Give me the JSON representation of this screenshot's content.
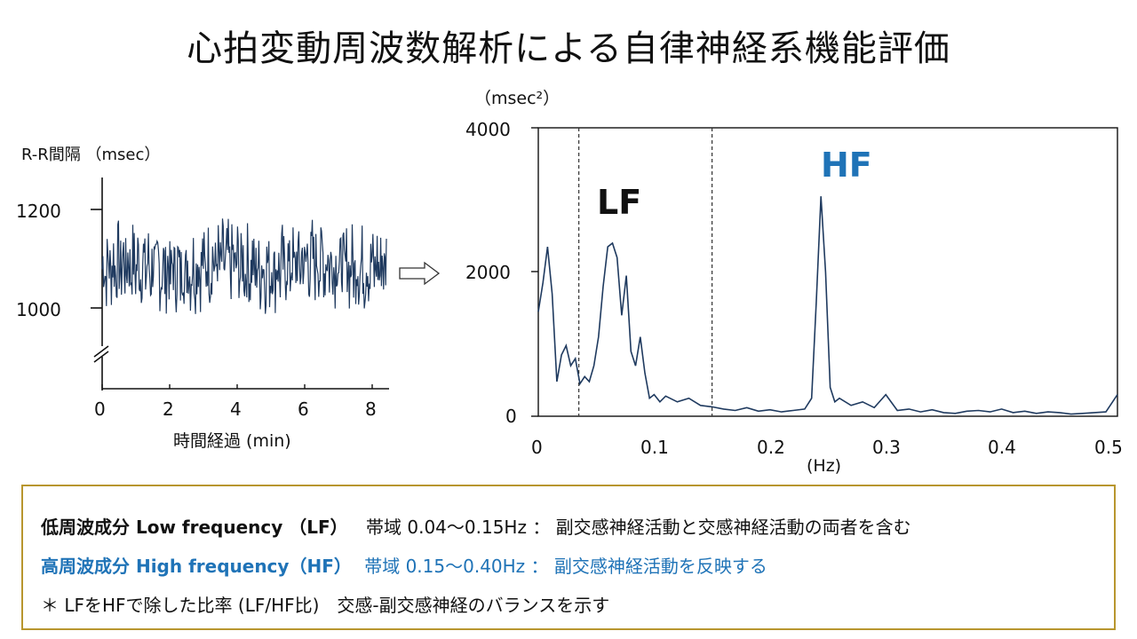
{
  "title": "心拍変動周波数解析による自律神経系機能評価",
  "left_chart": {
    "ylabel": "R-R間隔 （msec）",
    "xlabel": "時間経過 (min)",
    "y_ticks": [
      "1200",
      "1000"
    ],
    "x_ticks": [
      "0",
      "2",
      "4",
      "6",
      "8"
    ]
  },
  "arrow_icon": "right-hollow-arrow-icon",
  "right_chart": {
    "ylabel": "（msec²）",
    "xlabel": "(Hz)",
    "y_ticks": [
      "4000",
      "2000",
      "0"
    ],
    "x_ticks": [
      "0",
      "0.1",
      "0.2",
      "0.3",
      "0.4",
      "0.5"
    ],
    "band_labels": {
      "lf": "LF",
      "hf": "HF"
    }
  },
  "chart_data": [
    {
      "type": "line",
      "title": "",
      "ylabel": "R-R間隔 （msec）",
      "xlabel": "時間経過 (min)",
      "xlim": [
        0,
        8.4
      ],
      "ylim": [
        850,
        1250
      ],
      "axis_break": true,
      "series": [
        {
          "values_summary": "R-R interval fluctuating roughly between 980 and 1180 msec over ~8.4 min (about 400 beats)"
        }
      ],
      "line_color": "#1f3a5f"
    },
    {
      "type": "line",
      "title": "",
      "ylabel": "（msec²）",
      "xlabel": "(Hz)",
      "xlim": [
        0,
        0.5
      ],
      "ylim": [
        0,
        4000
      ],
      "band_dividers": [
        0.035,
        0.15
      ],
      "annotations": [
        {
          "text": "LF",
          "x": 0.07,
          "y": 2850,
          "color": "#111111"
        },
        {
          "text": "HF",
          "x": 0.26,
          "y": 3500,
          "color": "#1f73b7"
        }
      ],
      "x": [
        0,
        0.004,
        0.008,
        0.012,
        0.016,
        0.02,
        0.024,
        0.028,
        0.032,
        0.036,
        0.04,
        0.044,
        0.048,
        0.052,
        0.056,
        0.06,
        0.064,
        0.068,
        0.072,
        0.076,
        0.08,
        0.084,
        0.088,
        0.092,
        0.096,
        0.1,
        0.105,
        0.11,
        0.12,
        0.13,
        0.14,
        0.15,
        0.16,
        0.17,
        0.18,
        0.19,
        0.2,
        0.21,
        0.22,
        0.23,
        0.236,
        0.24,
        0.244,
        0.248,
        0.252,
        0.256,
        0.26,
        0.27,
        0.28,
        0.29,
        0.3,
        0.31,
        0.32,
        0.33,
        0.34,
        0.35,
        0.36,
        0.37,
        0.38,
        0.39,
        0.4,
        0.41,
        0.42,
        0.43,
        0.44,
        0.45,
        0.46,
        0.47,
        0.48,
        0.49,
        0.5
      ],
      "y": [
        1450,
        1850,
        2350,
        1700,
        480,
        850,
        980,
        700,
        800,
        450,
        550,
        480,
        700,
        1100,
        1800,
        2350,
        2400,
        2200,
        1400,
        1950,
        900,
        700,
        1100,
        600,
        250,
        300,
        200,
        280,
        200,
        250,
        150,
        130,
        100,
        80,
        120,
        70,
        90,
        60,
        80,
        100,
        250,
        1600,
        3050,
        2000,
        400,
        200,
        250,
        150,
        200,
        120,
        300,
        80,
        100,
        60,
        90,
        50,
        40,
        70,
        80,
        60,
        100,
        50,
        70,
        40,
        60,
        50,
        30,
        40,
        50,
        60,
        300
      ]
    }
  ],
  "legend": {
    "line1": {
      "name": "低周波成分 Low frequency （LF）",
      "band": "帯域 0.04～0.15Hz ： 副交感神経活動と交感神経活動の両者を含む"
    },
    "line2": {
      "name": "高周波成分 High frequency（HF）",
      "band": "帯域 0.15～0.40Hz ： 副交感神経活動を反映する"
    },
    "line3": "＊ LFをHFで除した比率 (LF/HF比)　交感-副交感神経のバランスを示す"
  },
  "colors": {
    "line": "#1f3a5f",
    "hf_blue": "#1f73b7",
    "legend_border": "#b8962e",
    "text": "#111111"
  }
}
